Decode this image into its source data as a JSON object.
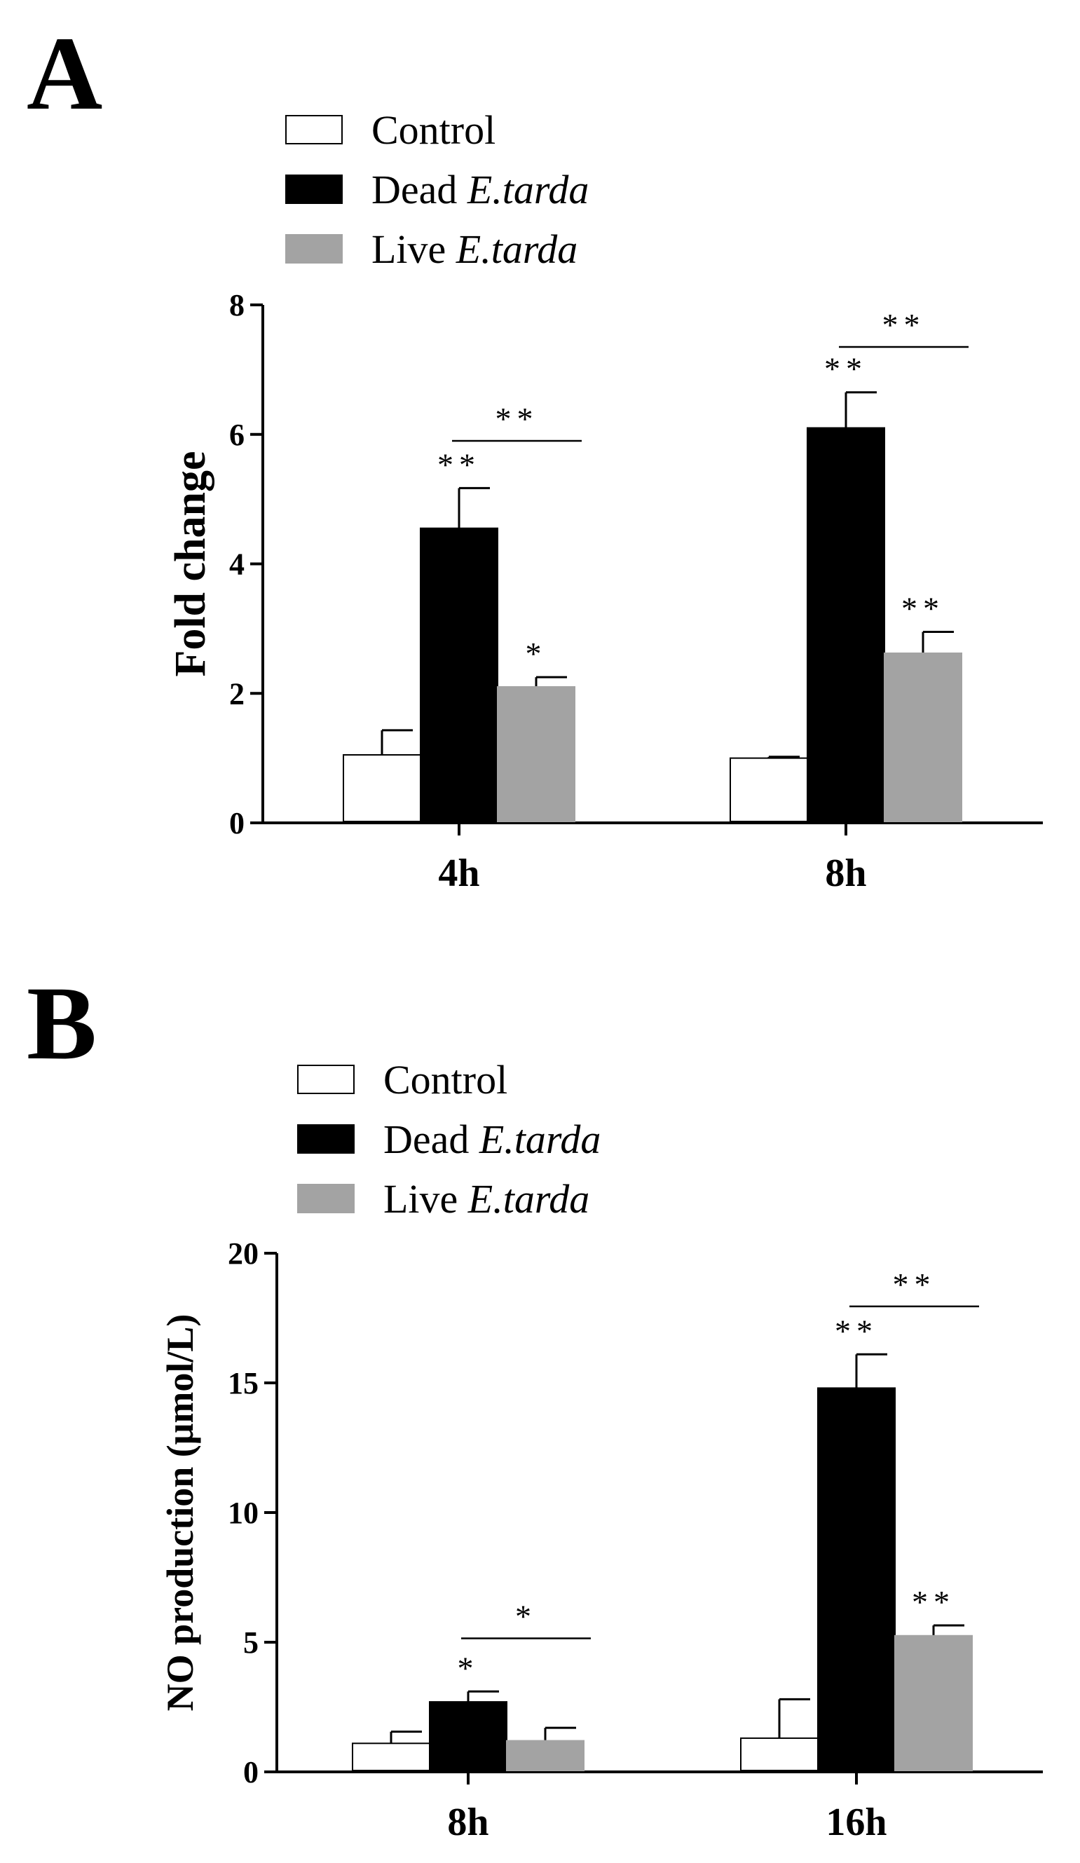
{
  "colors": {
    "control": "#ffffff",
    "dead": "#000000",
    "live": "#a3a3a3",
    "axis": "#000000"
  },
  "chart_data": [
    {
      "panel": "A",
      "type": "bar",
      "ylabel": "Fold change",
      "xlabel": "",
      "ylim": [
        0,
        8
      ],
      "yticks": [
        "0",
        "2",
        "4",
        "6",
        "8"
      ],
      "categories": [
        "4h",
        "8h"
      ],
      "legend": [
        {
          "prefix": "Control",
          "italic": ""
        },
        {
          "prefix": "Dead",
          "italic": "E.tarda"
        },
        {
          "prefix": "Live",
          "italic": "E.tarda"
        }
      ],
      "series": [
        {
          "name": "Control",
          "values": [
            1.05,
            1.0
          ],
          "errors": [
            0.38,
            0.02
          ],
          "marks": [
            "",
            ""
          ]
        },
        {
          "name": "Dead E.tarda",
          "values": [
            4.55,
            6.1
          ],
          "errors": [
            0.62,
            0.55
          ],
          "marks": [
            "**",
            "**"
          ]
        },
        {
          "name": "Live E.tarda",
          "values": [
            2.1,
            2.62
          ],
          "errors": [
            0.15,
            0.33
          ],
          "marks": [
            "*",
            "**"
          ]
        }
      ],
      "comparisons": [
        {
          "category": 0,
          "value": 5.9,
          "label": "**"
        },
        {
          "category": 1,
          "value": 7.35,
          "label": "**"
        }
      ]
    },
    {
      "panel": "B",
      "type": "bar",
      "ylabel": "NO production (μmol/L)",
      "xlabel": "",
      "ylim": [
        0,
        20
      ],
      "yticks": [
        "0",
        "5",
        "10",
        "15",
        "20"
      ],
      "categories": [
        "8h",
        "16h"
      ],
      "legend": [
        {
          "prefix": "Control",
          "italic": ""
        },
        {
          "prefix": "Dead",
          "italic": "E.tarda"
        },
        {
          "prefix": "Live",
          "italic": "E.tarda"
        }
      ],
      "series": [
        {
          "name": "Control",
          "values": [
            1.1,
            1.3
          ],
          "errors": [
            0.45,
            1.5
          ],
          "marks": [
            "",
            ""
          ]
        },
        {
          "name": "Dead E.tarda",
          "values": [
            2.7,
            14.8
          ],
          "errors": [
            0.4,
            1.3
          ],
          "marks": [
            "*",
            "**"
          ]
        },
        {
          "name": "Live E.tarda",
          "values": [
            1.2,
            5.25
          ],
          "errors": [
            0.5,
            0.4
          ],
          "marks": [
            "",
            "**"
          ]
        }
      ],
      "comparisons": [
        {
          "category": 0,
          "value": 5.15,
          "label": "*"
        },
        {
          "category": 1,
          "value": 17.95,
          "label": "**"
        }
      ]
    }
  ]
}
